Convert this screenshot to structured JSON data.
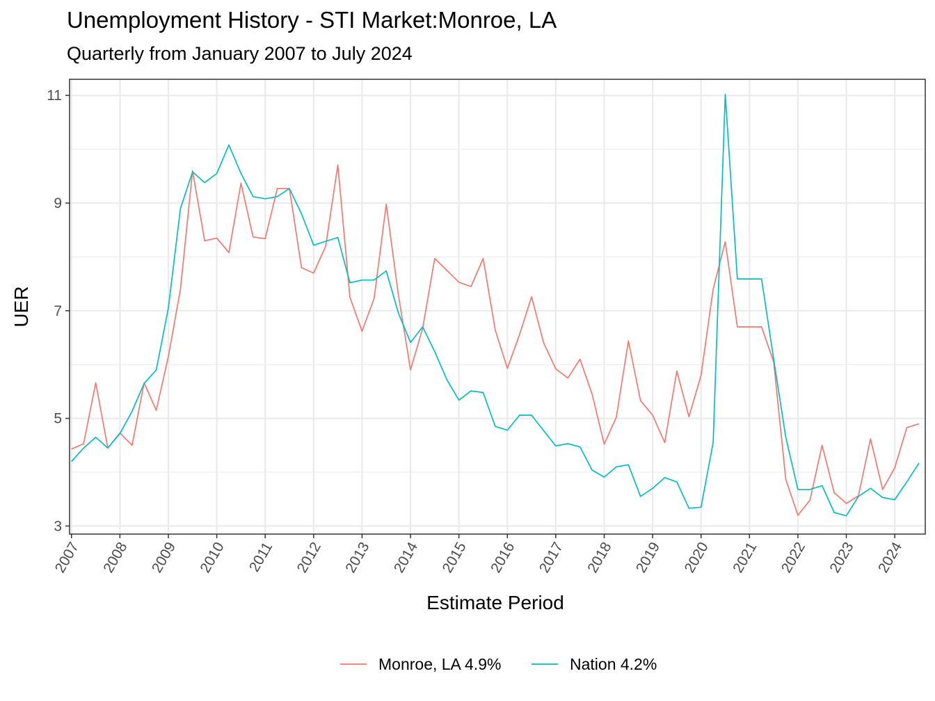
{
  "chart_data": {
    "type": "line",
    "title": "Unemployment History - STI Market:Monroe, LA",
    "subtitle": "Quarterly from January 2007 to July 2024",
    "xlabel": "Estimate Period",
    "ylabel": "UER",
    "x_start": "2007-01",
    "x_step_months": 3,
    "xlim": [
      2006.96,
      2024.63
    ],
    "ylim": [
      2.85,
      11.3
    ],
    "y_ticks": [
      3,
      5,
      7,
      9,
      11
    ],
    "y_minor_ticks": [
      4,
      6,
      8,
      10
    ],
    "x_ticks": [
      "2007",
      "2008",
      "2009",
      "2010",
      "2011",
      "2012",
      "2013",
      "2014",
      "2015",
      "2016",
      "2017",
      "2018",
      "2019",
      "2020",
      "2021",
      "2022",
      "2023",
      "2024"
    ],
    "grid": true,
    "legend_position": "bottom",
    "colors": {
      "monroe": "#F8766D",
      "nation": "#00BFC4",
      "grid": "#EBEBEB",
      "axis_text": "#4D4D4D"
    },
    "series": [
      {
        "name": "Monroe, LA 4.9%",
        "values": [
          4.43,
          4.53,
          5.66,
          4.45,
          4.73,
          4.5,
          5.66,
          5.15,
          6.15,
          7.4,
          9.6,
          8.3,
          8.35,
          8.08,
          9.37,
          8.37,
          8.34,
          9.27,
          9.27,
          7.8,
          7.7,
          8.2,
          9.71,
          7.25,
          6.62,
          7.23,
          8.98,
          7.3,
          5.9,
          6.67,
          7.97,
          7.75,
          7.53,
          7.45,
          7.97,
          6.64,
          5.93,
          6.55,
          7.26,
          6.4,
          5.92,
          5.75,
          6.1,
          5.45,
          4.52,
          5.02,
          6.44,
          5.33,
          5.06,
          4.55,
          5.88,
          5.03,
          5.8,
          7.4,
          8.28,
          6.7,
          6.7,
          6.7,
          6.05,
          3.87,
          3.2,
          3.48,
          4.5,
          3.62,
          3.42,
          3.56,
          4.62,
          3.68,
          4.08,
          4.83,
          4.9
        ]
      },
      {
        "name": "Nation 4.2%",
        "values": [
          4.2,
          4.45,
          4.65,
          4.45,
          4.72,
          5.13,
          5.65,
          5.9,
          7.05,
          8.9,
          9.58,
          9.38,
          9.55,
          10.08,
          9.55,
          9.12,
          9.08,
          9.12,
          9.27,
          8.8,
          8.22,
          8.29,
          8.36,
          7.52,
          7.57,
          7.57,
          7.74,
          6.96,
          6.41,
          6.7,
          6.24,
          5.72,
          5.34,
          5.51,
          5.48,
          4.85,
          4.78,
          5.06,
          5.06,
          4.77,
          4.49,
          4.53,
          4.47,
          4.04,
          3.91,
          4.1,
          4.14,
          3.55,
          3.7,
          3.9,
          3.82,
          3.33,
          3.35,
          4.55,
          11.02,
          7.59,
          7.59,
          7.59,
          6.1,
          4.65,
          3.68,
          3.68,
          3.75,
          3.25,
          3.19,
          3.55,
          3.7,
          3.53,
          3.49,
          3.82,
          4.17
        ]
      }
    ]
  }
}
